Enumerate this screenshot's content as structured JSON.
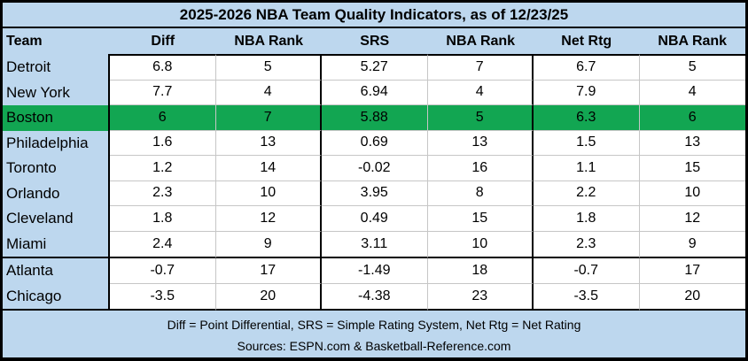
{
  "title": "2025-2026 NBA Team Quality Indicators, as of 12/23/25",
  "table": {
    "columns": [
      "Team",
      "Diff",
      "NBA Rank",
      "SRS",
      "NBA Rank",
      "Net Rtg",
      "NBA Rank"
    ],
    "rows": [
      {
        "team": "Detroit",
        "values": [
          "6.8",
          "5",
          "5.27",
          "7",
          "6.7",
          "5"
        ],
        "highlight": false,
        "thick_bottom": false
      },
      {
        "team": "New York",
        "values": [
          "7.7",
          "4",
          "6.94",
          "4",
          "7.9",
          "4"
        ],
        "highlight": false,
        "thick_bottom": false
      },
      {
        "team": "Boston",
        "values": [
          "6",
          "7",
          "5.88",
          "5",
          "6.3",
          "6"
        ],
        "highlight": true,
        "thick_bottom": false
      },
      {
        "team": "Philadelphia",
        "values": [
          "1.6",
          "13",
          "0.69",
          "13",
          "1.5",
          "13"
        ],
        "highlight": false,
        "thick_bottom": false
      },
      {
        "team": "Toronto",
        "values": [
          "1.2",
          "14",
          "-0.02",
          "16",
          "1.1",
          "15"
        ],
        "highlight": false,
        "thick_bottom": false
      },
      {
        "team": "Orlando",
        "values": [
          "2.3",
          "10",
          "3.95",
          "8",
          "2.2",
          "10"
        ],
        "highlight": false,
        "thick_bottom": false
      },
      {
        "team": "Cleveland",
        "values": [
          "1.8",
          "12",
          "0.49",
          "15",
          "1.8",
          "12"
        ],
        "highlight": false,
        "thick_bottom": false
      },
      {
        "team": "Miami",
        "values": [
          "2.4",
          "9",
          "3.11",
          "10",
          "2.3",
          "9"
        ],
        "highlight": false,
        "thick_bottom": true
      },
      {
        "team": "Atlanta",
        "values": [
          "-0.7",
          "17",
          "-1.49",
          "18",
          "-0.7",
          "17"
        ],
        "highlight": false,
        "thick_bottom": false
      },
      {
        "team": "Chicago",
        "values": [
          "-3.5",
          "20",
          "-4.38",
          "23",
          "-3.5",
          "20"
        ],
        "highlight": false,
        "thick_bottom": true
      }
    ]
  },
  "footer": {
    "legend": "Diff = Point Differential, SRS = Simple Rating System, Net Rtg = Net Rating",
    "sources": "Sources: ESPN.com & Basketball-Reference.com"
  },
  "colors": {
    "background": "#BDD7EE",
    "highlight_green": "#12A652",
    "cell_background": "#FFFFFF",
    "gridline": "#C6C6C6",
    "border": "#000000"
  },
  "chart_data": {
    "type": "table",
    "title": "2025-2026 NBA Team Quality Indicators, as of 12/23/25",
    "columns": [
      "Team",
      "Diff",
      "NBA Rank",
      "SRS",
      "NBA Rank",
      "Net Rtg",
      "NBA Rank"
    ],
    "rows": [
      [
        "Detroit",
        6.8,
        5,
        5.27,
        7,
        6.7,
        5
      ],
      [
        "New York",
        7.7,
        4,
        6.94,
        4,
        7.9,
        4
      ],
      [
        "Boston",
        6,
        7,
        5.88,
        5,
        6.3,
        6
      ],
      [
        "Philadelphia",
        1.6,
        13,
        0.69,
        13,
        1.5,
        13
      ],
      [
        "Toronto",
        1.2,
        14,
        -0.02,
        16,
        1.1,
        15
      ],
      [
        "Orlando",
        2.3,
        10,
        3.95,
        8,
        2.2,
        10
      ],
      [
        "Cleveland",
        1.8,
        12,
        0.49,
        15,
        1.8,
        12
      ],
      [
        "Miami",
        2.4,
        9,
        3.11,
        10,
        2.3,
        9
      ],
      [
        "Atlanta",
        -0.7,
        17,
        -1.49,
        18,
        -0.7,
        17
      ],
      [
        "Chicago",
        -3.5,
        20,
        -4.38,
        23,
        -3.5,
        20
      ]
    ],
    "highlighted_row": "Boston",
    "notes": [
      "Diff = Point Differential, SRS = Simple Rating System, Net Rtg = Net Rating",
      "Sources: ESPN.com & Basketball-Reference.com"
    ]
  }
}
